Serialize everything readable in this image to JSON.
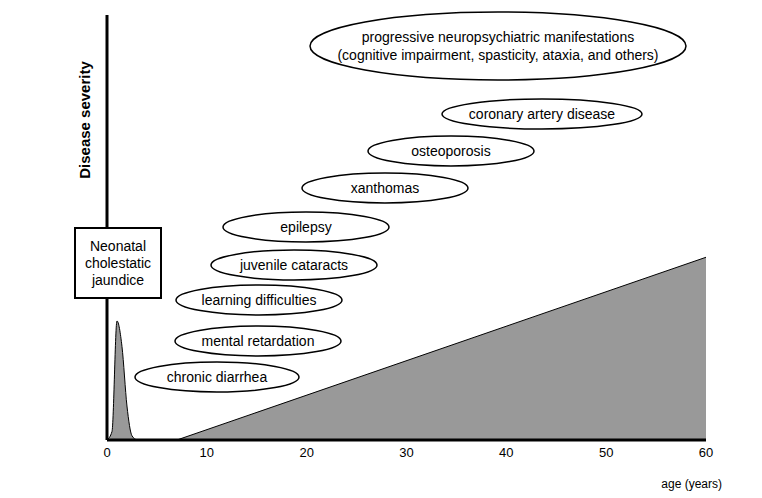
{
  "chart_data": {
    "type": "area",
    "xlabel": "age (years)",
    "ylabel": "Disease severity",
    "x": [
      0,
      0.5,
      1,
      1.5,
      2,
      2.5,
      3,
      7,
      60
    ],
    "series": [
      {
        "color": "#999999",
        "values": [
          0,
          2,
          28,
          22,
          8,
          1,
          0,
          null,
          null
        ]
      },
      {
        "color": "#999999",
        "values": [
          null,
          null,
          null,
          null,
          null,
          null,
          null,
          0,
          43
        ]
      }
    ],
    "xlim": [
      0,
      60
    ],
    "xticks": [
      0,
      10,
      20,
      30,
      40,
      50,
      60
    ],
    "ylim": [
      0,
      100
    ],
    "tick_labels": "x",
    "annotations": [
      "Neonatal cholestatic jaundice",
      "chronic diarrhea",
      "mental retardation",
      "learning difficulties",
      "juvenile cataracts",
      "epilepsy",
      "xanthomas",
      "osteoporosis",
      "coronary artery disease",
      "progressive neuropsychiatric manifestations (cognitive impairment, spasticity, ataxia, and others)"
    ]
  }
}
